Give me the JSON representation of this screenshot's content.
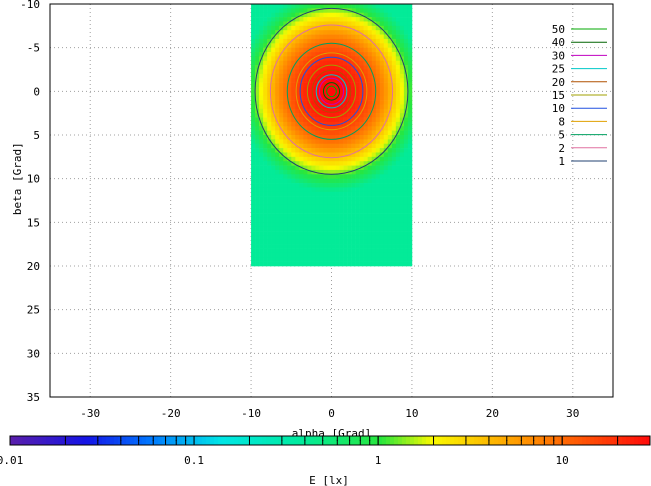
{
  "chart_data": {
    "type": "heatmap",
    "title": "",
    "xlabel": "alpha [Grad]",
    "ylabel": "beta [Grad]",
    "xlim": [
      -35,
      35
    ],
    "ylim": [
      -10,
      35
    ],
    "y_axis_inverted": true,
    "x_ticks": [
      "-30",
      "-20",
      "-10",
      "0",
      "10",
      "20",
      "30"
    ],
    "y_ticks": [
      "-10",
      "-5",
      "0",
      "5",
      "10",
      "15",
      "20",
      "25",
      "30",
      "35"
    ],
    "x_tick_values": [
      -30,
      -20,
      -10,
      0,
      10,
      20,
      30
    ],
    "y_tick_values": [
      -10,
      -5,
      0,
      5,
      10,
      15,
      20,
      25,
      30,
      35
    ],
    "grid": true,
    "data_extent": {
      "alpha": [
        -10,
        10
      ],
      "beta": [
        -10,
        20
      ]
    },
    "peak": {
      "alpha": 0,
      "beta": 0
    },
    "contour_levels": [
      {
        "label": "50",
        "color": "#00aa00"
      },
      {
        "label": "40",
        "color": "#006400"
      },
      {
        "label": "30",
        "color": "#c000c0"
      },
      {
        "label": "25",
        "color": "#00c8c8"
      },
      {
        "label": "20",
        "color": "#b05000"
      },
      {
        "label": "15",
        "color": "#a0a000"
      },
      {
        "label": "10",
        "color": "#2050e0"
      },
      {
        "label": "8",
        "color": "#e0a000"
      },
      {
        "label": "5",
        "color": "#00a060"
      },
      {
        "label": "2",
        "color": "#e070a0"
      },
      {
        "label": "1",
        "color": "#204070"
      }
    ],
    "contour_radii_deg": {
      "50": 0.6,
      "40": 1.0,
      "30": 1.5,
      "25": 1.9,
      "20": 2.4,
      "15": 3.0,
      "10": 3.9,
      "8": 4.4,
      "5": 5.5,
      "2": 7.6,
      "1": 9.5
    },
    "colorbar": {
      "label": "E [lx]",
      "scale": "log",
      "range": [
        0.01,
        30
      ],
      "tick_labels": [
        "0.01",
        "0.1",
        "1",
        "10"
      ],
      "tick_values": [
        0.01,
        0.1,
        1,
        10
      ]
    }
  }
}
